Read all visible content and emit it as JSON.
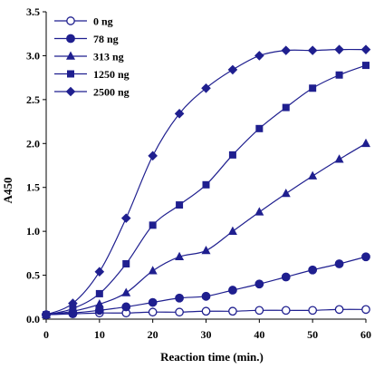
{
  "chart_data": {
    "type": "line",
    "xlabel": "Reaction time (min.)",
    "ylabel": "A450",
    "xlim": [
      0,
      60
    ],
    "ylim": [
      0,
      3.5
    ],
    "xticks": [
      "0",
      "10",
      "20",
      "30",
      "40",
      "50",
      "60"
    ],
    "yticks": [
      "0.0",
      "0.5",
      "1.0",
      "1.5",
      "2.0",
      "2.5",
      "3.0",
      "3.5"
    ],
    "grid": false,
    "legend_position": "top-left",
    "line_color": "#1f1f8f",
    "x": [
      0,
      5,
      10,
      15,
      20,
      25,
      30,
      35,
      40,
      45,
      50,
      55,
      60
    ],
    "series": [
      {
        "name": "0 ng",
        "marker": "open-circle",
        "values": [
          0.05,
          0.06,
          0.07,
          0.07,
          0.08,
          0.08,
          0.09,
          0.09,
          0.1,
          0.1,
          0.1,
          0.11,
          0.11
        ]
      },
      {
        "name": "78 ng",
        "marker": "filled-circle",
        "values": [
          0.05,
          0.07,
          0.1,
          0.14,
          0.19,
          0.24,
          0.26,
          0.33,
          0.4,
          0.48,
          0.56,
          0.63,
          0.71
        ]
      },
      {
        "name": "313 ng",
        "marker": "triangle",
        "values": [
          0.05,
          0.09,
          0.17,
          0.3,
          0.55,
          0.71,
          0.78,
          1.0,
          1.22,
          1.43,
          1.63,
          1.82,
          2.0
        ]
      },
      {
        "name": "1250 ng",
        "marker": "square",
        "values": [
          0.05,
          0.12,
          0.29,
          0.63,
          1.07,
          1.3,
          1.53,
          1.87,
          2.17,
          2.41,
          2.63,
          2.78,
          2.89
        ]
      },
      {
        "name": "2500 ng",
        "marker": "diamond",
        "values": [
          0.05,
          0.18,
          0.54,
          1.15,
          1.86,
          2.34,
          2.63,
          2.84,
          3.0,
          3.06,
          3.06,
          3.07,
          3.07
        ]
      }
    ]
  }
}
